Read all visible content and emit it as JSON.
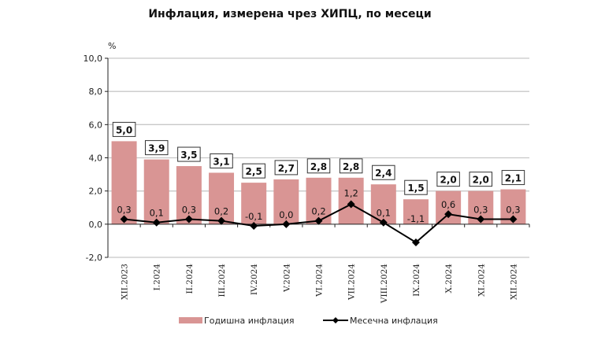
{
  "chart_data": {
    "type": "bar+line",
    "title": "Инфлация, измерена чрез ХИПЦ, по месеци",
    "ylabel": "%",
    "ylim": [
      -2,
      10
    ],
    "yticks": [
      "10,0",
      "8,0",
      "6,0",
      "4,0",
      "2,0",
      "0,0",
      "-2,0"
    ],
    "ytick_values": [
      10,
      8,
      6,
      4,
      2,
      0,
      -2
    ],
    "grid": true,
    "legend_position": "bottom",
    "categories": [
      "XII.2023",
      "I.2024",
      "II.2024",
      "III.2024",
      "IV.2024",
      "V.2024",
      "VI.2024",
      "VII.2024",
      "VIII.2024",
      "IX.2024",
      "X.2024",
      "XI.2024",
      "XII.2024"
    ],
    "series": [
      {
        "name": "Годишна инфлация",
        "type": "bar",
        "color": "#d99594",
        "values": [
          5.0,
          3.9,
          3.5,
          3.1,
          2.5,
          2.7,
          2.8,
          2.8,
          2.4,
          1.5,
          2.0,
          2.0,
          2.1
        ],
        "labels": [
          "5,0",
          "3,9",
          "3,5",
          "3,1",
          "2,5",
          "2,7",
          "2,8",
          "2,8",
          "2,4",
          "1,5",
          "2,0",
          "2,0",
          "2,1"
        ]
      },
      {
        "name": "Месечна инфлация",
        "type": "line",
        "color": "#000000",
        "values": [
          0.3,
          0.1,
          0.3,
          0.2,
          -0.1,
          0.0,
          0.2,
          1.2,
          0.1,
          -1.1,
          0.6,
          0.3,
          0.3
        ],
        "labels": [
          "0,3",
          "0,1",
          "0,3",
          "0,2",
          "-0,1",
          "0,0",
          "0,2",
          "1,2",
          "0,1",
          "-1,1",
          "0,6",
          "0,3",
          "0,3"
        ]
      }
    ]
  }
}
